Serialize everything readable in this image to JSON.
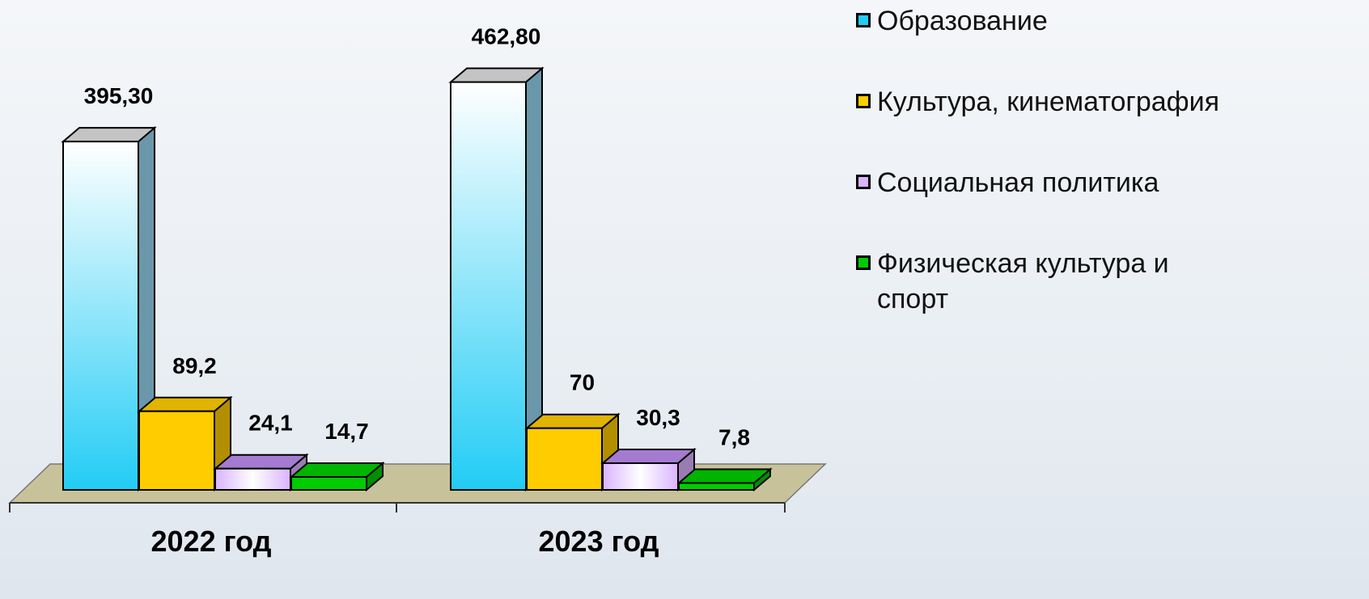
{
  "chart_data": {
    "type": "bar3d",
    "categories": [
      "2022 год",
      "2023 год"
    ],
    "series": [
      {
        "name": "Образование",
        "color": "#22ccf5",
        "values": [
          395.3,
          462.8
        ],
        "value_labels": [
          "395,30",
          "462,80"
        ]
      },
      {
        "name": "Культура, кинематография",
        "color": "#ffcc00",
        "values": [
          89.2,
          70
        ],
        "value_labels": [
          "89,2",
          "70"
        ]
      },
      {
        "name": "Социальная политика",
        "color": "#d9b3ff",
        "values": [
          24.1,
          30.3
        ],
        "value_labels": [
          "24,1",
          "30,3"
        ]
      },
      {
        "name": "Физическая культура и спорт",
        "color": "#00cc00",
        "values": [
          14.7,
          7.8
        ],
        "value_labels": [
          "14,7",
          "7,8"
        ]
      }
    ],
    "legend": "right"
  }
}
